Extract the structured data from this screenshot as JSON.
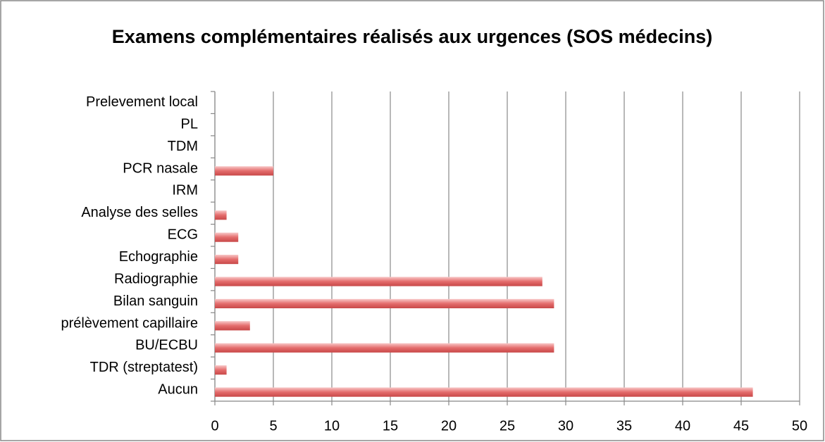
{
  "chart_data": {
    "type": "bar",
    "orientation": "horizontal",
    "title": "Examens complémentaires réalisés aux urgences (SOS médecins)",
    "categories": [
      "Aucun",
      "TDR (streptatest)",
      "BU/ECBU",
      "prélèvement capillaire",
      "Bilan sanguin",
      "Radiographie",
      "Echographie",
      "ECG",
      "Analyse des selles",
      "IRM",
      "PCR nasale",
      "TDM",
      "PL",
      "Prelevement local"
    ],
    "values": [
      46,
      1,
      29,
      3,
      29,
      28,
      2,
      2,
      1,
      0,
      5,
      0,
      0,
      0
    ],
    "color": "#e46c6c",
    "xlim": [
      0,
      50
    ],
    "xticks": [
      0,
      5,
      10,
      15,
      20,
      25,
      30,
      35,
      40,
      45,
      50
    ],
    "grid": true
  }
}
